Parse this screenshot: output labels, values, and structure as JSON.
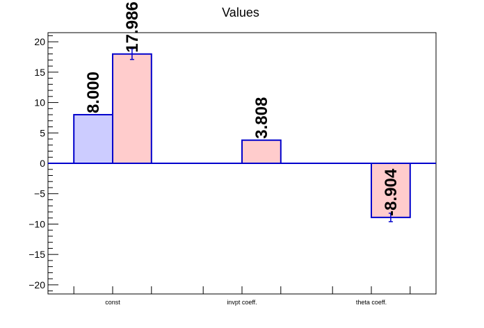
{
  "chart_data": {
    "type": "bar",
    "title": "Values",
    "xlabel": "",
    "ylabel": "",
    "ylim": [
      -21.5,
      21.5
    ],
    "yticks": [
      -20,
      -15,
      -10,
      -5,
      0,
      5,
      10,
      15,
      20
    ],
    "ytick_labels": [
      "−20",
      "−15",
      "−10",
      "−5",
      "0",
      "5",
      "10",
      "15",
      "20"
    ],
    "categories": [
      "const",
      "invpt coeff.",
      "theta coeff."
    ],
    "series": [
      {
        "color": "#ccccff",
        "values": [
          8.0,
          null,
          null
        ],
        "errors": [
          0,
          null,
          null
        ],
        "labels": [
          "8.000",
          null,
          null
        ]
      },
      {
        "color": "#ffcccc",
        "values": [
          17.986,
          3.808,
          -8.904
        ],
        "errors": [
          0.9,
          0,
          0.7
        ],
        "labels": [
          "17.986",
          "3.808",
          "-8.904"
        ]
      }
    ],
    "edge_color": "#0000cc",
    "grid": false,
    "legend": "none"
  }
}
